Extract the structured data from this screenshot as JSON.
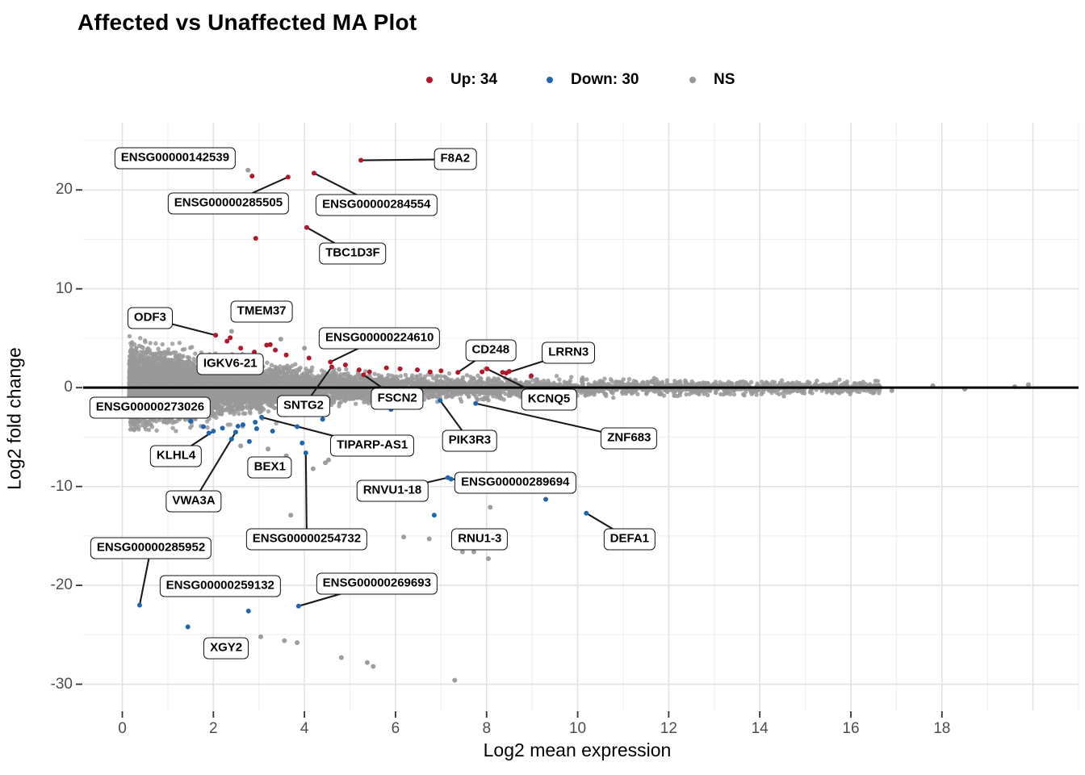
{
  "title": "Affected vs Unaffected MA Plot",
  "legend": {
    "up": {
      "label": "Up: 34",
      "color": "#B2182B"
    },
    "down": {
      "label": "Down: 30",
      "color": "#2166AC"
    },
    "ns": {
      "label": "NS",
      "color": "#999999"
    }
  },
  "chart_data": {
    "type": "scatter",
    "title": "Affected vs Unaffected MA Plot",
    "xlabel": "Log2 mean expression",
    "ylabel": "Log2 fold change",
    "xlim": [
      -0.86,
      21.0
    ],
    "ylim": [
      -32.65,
      26.8
    ],
    "x_ticks": [
      0,
      2,
      4,
      6,
      8,
      10,
      12,
      14,
      16,
      18
    ],
    "y_ticks": [
      20,
      10,
      0,
      -10,
      -20,
      -30
    ],
    "x_grid_major": [
      0,
      2,
      4,
      6,
      8,
      10,
      12,
      14,
      16,
      18,
      20
    ],
    "x_grid_minor": [
      1,
      3,
      5,
      7,
      9,
      11,
      13,
      15,
      17,
      19,
      21
    ],
    "y_grid_major": [
      20,
      10,
      0,
      -10,
      -20,
      -30
    ],
    "y_grid_minor": [
      25,
      15,
      5,
      -5,
      -15,
      -25
    ],
    "grid": true,
    "legend_position": "top",
    "hline_y": 0,
    "point_radius": 3,
    "colors": {
      "up": "#B2182B",
      "down": "#2166AC",
      "ns": "#999999",
      "hline": "#000000",
      "grid_major": "#E2E2E2",
      "grid_minor": "#F0F0F0",
      "segment": "#1a1a1a"
    },
    "series": [
      {
        "name": "Up: 34",
        "color": "#B2182B",
        "points": [
          [
            5.24,
            23.0
          ],
          [
            2.85,
            21.4
          ],
          [
            3.64,
            21.3
          ],
          [
            4.21,
            21.7
          ],
          [
            4.05,
            16.2
          ],
          [
            2.93,
            15.1
          ],
          [
            2.05,
            5.3
          ],
          [
            2.37,
            5.05
          ],
          [
            2.3,
            4.7
          ],
          [
            3.17,
            4.3
          ],
          [
            3.25,
            4.35
          ],
          [
            3.36,
            3.8
          ],
          [
            2.6,
            4.0
          ],
          [
            2.9,
            3.6
          ],
          [
            3.6,
            3.3
          ],
          [
            4.1,
            3.0
          ],
          [
            4.57,
            2.6
          ],
          [
            4.6,
            2.1
          ],
          [
            4.9,
            2.3
          ],
          [
            5.2,
            1.8
          ],
          [
            5.3,
            1.3
          ],
          [
            5.43,
            1.6
          ],
          [
            5.8,
            2.0
          ],
          [
            6.1,
            1.9
          ],
          [
            6.48,
            1.8
          ],
          [
            6.76,
            1.6
          ],
          [
            7.0,
            1.7
          ],
          [
            7.37,
            1.55
          ],
          [
            7.9,
            1.6
          ],
          [
            8.01,
            1.9
          ],
          [
            8.35,
            1.55
          ],
          [
            8.43,
            1.47
          ],
          [
            8.5,
            1.65
          ],
          [
            8.98,
            1.2
          ]
        ]
      },
      {
        "name": "Down: 30",
        "color": "#2166AC",
        "points": [
          [
            0.38,
            -22.0
          ],
          [
            1.44,
            -24.2
          ],
          [
            2.77,
            -22.6
          ],
          [
            3.87,
            -22.1
          ],
          [
            4.03,
            -6.6
          ],
          [
            6.85,
            -12.9
          ],
          [
            7.15,
            -9.1
          ],
          [
            7.22,
            -9.25
          ],
          [
            9.3,
            -11.3
          ],
          [
            10.19,
            -12.7
          ],
          [
            6.98,
            -1.3
          ],
          [
            7.76,
            -1.6
          ],
          [
            1.78,
            -3.95
          ],
          [
            2.0,
            -4.4
          ],
          [
            2.49,
            -4.5
          ],
          [
            2.54,
            -3.9
          ],
          [
            2.79,
            -5.45
          ],
          [
            2.92,
            -3.5
          ],
          [
            2.95,
            -4.15
          ],
          [
            3.84,
            -3.95
          ],
          [
            1.5,
            -3.4
          ],
          [
            2.2,
            -4.1
          ],
          [
            2.65,
            -3.75
          ],
          [
            3.3,
            -4.4
          ],
          [
            3.06,
            -3.0
          ],
          [
            2.4,
            -5.2
          ],
          [
            3.95,
            -5.6
          ],
          [
            4.4,
            -3.2
          ],
          [
            1.9,
            -4.6
          ],
          [
            5.9,
            -2.2
          ]
        ]
      },
      {
        "name": "NS outliers",
        "color": "#999999",
        "points": [
          [
            2.76,
            22.0
          ],
          [
            2.4,
            5.7
          ],
          [
            3.48,
            4.9
          ],
          [
            4.0,
            4.0
          ],
          [
            2.6,
            -5.9
          ],
          [
            3.2,
            -6.2
          ],
          [
            3.6,
            -6.9
          ],
          [
            4.19,
            -8.2
          ],
          [
            4.53,
            -7.3
          ],
          [
            4.46,
            -7.6
          ],
          [
            3.7,
            -12.9
          ],
          [
            6.18,
            -15.1
          ],
          [
            6.74,
            -15.3
          ],
          [
            7.47,
            -16.6
          ],
          [
            7.72,
            -16.6
          ],
          [
            8.08,
            -12.1
          ],
          [
            8.04,
            -17.3
          ],
          [
            3.04,
            -25.2
          ],
          [
            3.56,
            -25.6
          ],
          [
            3.84,
            -25.8
          ],
          [
            4.81,
            -27.3
          ],
          [
            5.38,
            -27.8
          ],
          [
            5.51,
            -28.2
          ],
          [
            7.3,
            -29.6
          ],
          [
            16.9,
            -0.3
          ],
          [
            17.8,
            0.2
          ],
          [
            18.5,
            -0.15
          ],
          [
            19.6,
            0.1
          ],
          [
            19.9,
            0.3
          ]
        ]
      }
    ],
    "ns_cloud": {
      "n": 9500,
      "seed": 42,
      "x_min": 0.15,
      "x_exp_scale": 2.3,
      "x_uniform_frac": 0.22,
      "x_uniform_max": 16.65,
      "sd_base": 0.25,
      "sd_amp": 1.55,
      "sd_tau": 4.2,
      "y_clamp": 5.5,
      "color": "#999999",
      "alpha": 0.85,
      "radius": 2.7
    },
    "gene_labels": [
      {
        "gene": "ENSG00000142539",
        "label_x": 1.16,
        "label_y": 23.2,
        "point_x": 2.85,
        "point_y": 21.4,
        "segment": false
      },
      {
        "gene": "F8A2",
        "label_x": 7.31,
        "label_y": 23.1,
        "point_x": 5.24,
        "point_y": 23.0,
        "segment": true
      },
      {
        "gene": "ENSG00000285505",
        "label_x": 2.33,
        "label_y": 18.6,
        "point_x": 3.64,
        "point_y": 21.3,
        "segment": true
      },
      {
        "gene": "ENSG00000284554",
        "label_x": 5.58,
        "label_y": 18.5,
        "point_x": 4.21,
        "point_y": 21.7,
        "segment": true
      },
      {
        "gene": "TBC1D3F",
        "label_x": 5.06,
        "label_y": 13.6,
        "point_x": 4.05,
        "point_y": 16.2,
        "segment": true
      },
      {
        "gene": "ODF3",
        "label_x": 0.61,
        "label_y": 7.0,
        "point_x": 2.05,
        "point_y": 5.3,
        "segment": true
      },
      {
        "gene": "TMEM37",
        "label_x": 3.06,
        "label_y": 7.7,
        "point_x": 3.17,
        "point_y": 4.3,
        "segment": false
      },
      {
        "gene": "IGKV6-21",
        "label_x": 2.37,
        "label_y": 2.4,
        "point_x": 2.3,
        "point_y": 4.7,
        "segment": false
      },
      {
        "gene": "ENSG00000224610",
        "label_x": 5.65,
        "label_y": 5.0,
        "point_x": 4.57,
        "point_y": 2.6,
        "segment": true
      },
      {
        "gene": "SNTG2",
        "label_x": 3.98,
        "label_y": -1.9,
        "point_x": 4.6,
        "point_y": 2.1,
        "segment": true
      },
      {
        "gene": "FSCN2",
        "label_x": 6.04,
        "label_y": -1.1,
        "point_x": 5.3,
        "point_y": 1.3,
        "segment": true
      },
      {
        "gene": "CD248",
        "label_x": 8.09,
        "label_y": 3.8,
        "point_x": 7.37,
        "point_y": 1.55,
        "segment": true
      },
      {
        "gene": "LRRN3",
        "label_x": 9.8,
        "label_y": 3.5,
        "point_x": 8.43,
        "point_y": 1.47,
        "segment": true
      },
      {
        "gene": "KCNQ5",
        "label_x": 9.37,
        "label_y": -1.2,
        "point_x": 8.01,
        "point_y": 1.9,
        "segment": true
      },
      {
        "gene": "ENSG00000273026",
        "label_x": 0.61,
        "label_y": -2.0,
        "point_x": 1.78,
        "point_y": -3.95,
        "segment": false
      },
      {
        "gene": "KLHL4",
        "label_x": 1.18,
        "label_y": -6.9,
        "point_x": 2.0,
        "point_y": -4.4,
        "segment": true
      },
      {
        "gene": "VWA3A",
        "label_x": 1.57,
        "label_y": -11.5,
        "point_x": 2.49,
        "point_y": -4.5,
        "segment": true
      },
      {
        "gene": "TIPARP-AS1",
        "label_x": 5.49,
        "label_y": -5.9,
        "point_x": 3.06,
        "point_y": -3.0,
        "segment": true
      },
      {
        "gene": "BEX1",
        "label_x": 3.24,
        "label_y": -8.1,
        "point_x": 2.79,
        "point_y": -5.45,
        "segment": false
      },
      {
        "gene": "PIK3R3",
        "label_x": 7.63,
        "label_y": -5.4,
        "point_x": 6.98,
        "point_y": -1.3,
        "segment": true
      },
      {
        "gene": "ZNF683",
        "label_x": 11.13,
        "label_y": -5.1,
        "point_x": 7.76,
        "point_y": -1.6,
        "segment": true
      },
      {
        "gene": "RNVU1-18",
        "label_x": 5.93,
        "label_y": -10.4,
        "point_x": 7.15,
        "point_y": -9.1,
        "segment": true
      },
      {
        "gene": "ENSG00000289694",
        "label_x": 8.63,
        "label_y": -9.6,
        "point_x": 7.22,
        "point_y": -9.25,
        "segment": true
      },
      {
        "gene": "RNU1-3",
        "label_x": 7.85,
        "label_y": -15.3,
        "point_x": 8.08,
        "point_y": -12.1,
        "segment": false
      },
      {
        "gene": "DEFA1",
        "label_x": 11.14,
        "label_y": -15.3,
        "point_x": 10.19,
        "point_y": -12.7,
        "segment": true
      },
      {
        "gene": "ENSG00000254732",
        "label_x": 4.05,
        "label_y": -15.3,
        "point_x": 4.03,
        "point_y": -6.6,
        "segment": true
      },
      {
        "gene": "ENSG00000285952",
        "label_x": 0.63,
        "label_y": -16.2,
        "point_x": 0.38,
        "point_y": -22.0,
        "segment": true
      },
      {
        "gene": "ENSG00000259132",
        "label_x": 2.15,
        "label_y": -20.1,
        "point_x": 2.77,
        "point_y": -22.6,
        "segment": false
      },
      {
        "gene": "ENSG00000269693",
        "label_x": 5.59,
        "label_y": -19.8,
        "point_x": 3.87,
        "point_y": -22.1,
        "segment": true
      },
      {
        "gene": "XGY2",
        "label_x": 2.28,
        "label_y": -26.4,
        "point_x": 1.44,
        "point_y": -24.2,
        "segment": false
      }
    ]
  }
}
